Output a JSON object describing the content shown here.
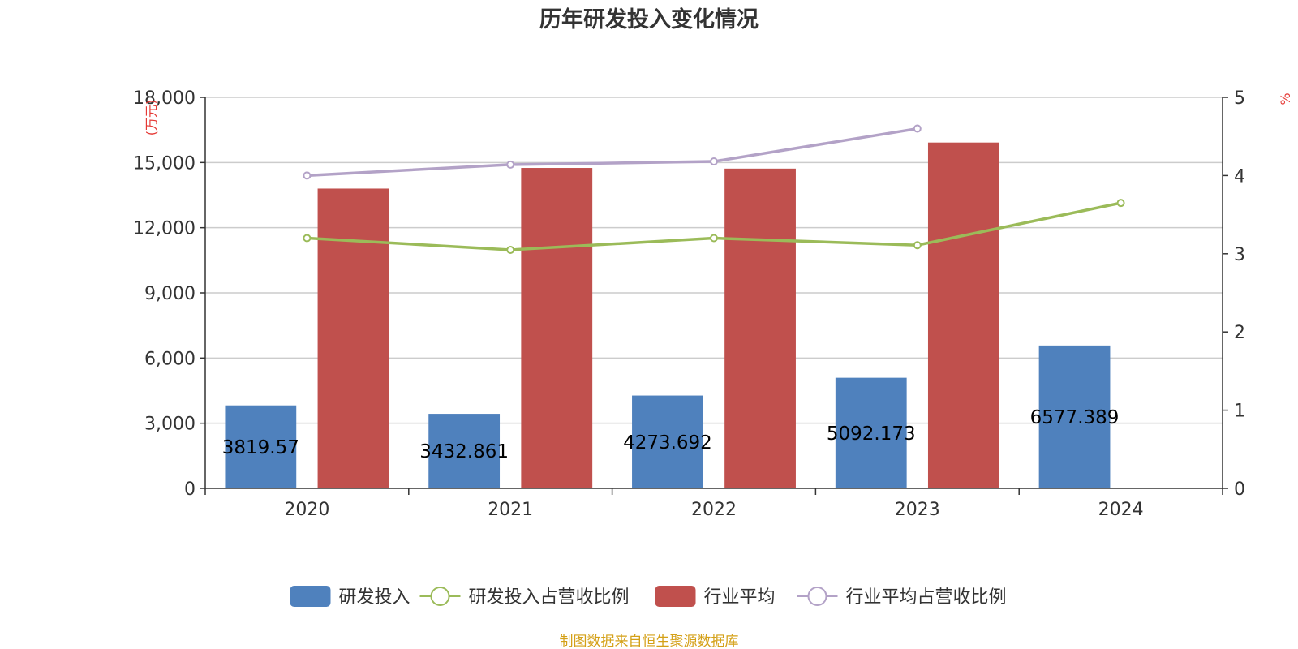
{
  "chart_data": {
    "type": "bar",
    "title": "历年研发投入变化情况",
    "categories": [
      "2020",
      "2021",
      "2022",
      "2023",
      "2024"
    ],
    "y_left": {
      "unit": "(万元)",
      "min": 0,
      "max": 18000,
      "ticks": [
        "0",
        "3,000",
        "6,000",
        "9,000",
        "12,000",
        "15,000",
        "18,000"
      ],
      "tick_values": [
        0,
        3000,
        6000,
        9000,
        12000,
        15000,
        18000
      ]
    },
    "y_right": {
      "unit": "%",
      "min": 0,
      "max": 5,
      "ticks": [
        "0",
        "1",
        "2",
        "3",
        "4",
        "5"
      ],
      "tick_values": [
        0,
        1,
        2,
        3,
        4,
        5
      ]
    },
    "series": [
      {
        "name": "研发投入",
        "kind": "bar",
        "axis": "left",
        "color": "#4f81bd",
        "values": [
          3819.57,
          3432.861,
          4273.692,
          5092.173,
          6577.389
        ],
        "labels": [
          "3819.57",
          "3432.861",
          "4273.692",
          "5092.173",
          "6577.389"
        ]
      },
      {
        "name": "行业平均",
        "kind": "bar",
        "axis": "left",
        "color": "#c0504d",
        "values": [
          13800,
          14750,
          14720,
          15920,
          null
        ]
      },
      {
        "name": "研发投入占营收比例",
        "kind": "line",
        "axis": "right",
        "color": "#9bbb59",
        "values": [
          3.2,
          3.05,
          3.2,
          3.11,
          3.65
        ]
      },
      {
        "name": "行业平均占营收比例",
        "kind": "line",
        "axis": "right",
        "color": "#b3a2c7",
        "values": [
          4.0,
          4.14,
          4.18,
          4.6,
          null
        ]
      }
    ],
    "legend": {
      "position": "bottom",
      "order": [
        "研发投入",
        "研发投入占营收比例",
        "行业平均",
        "行业平均占营收比例"
      ]
    },
    "grid": true
  },
  "source_note": "制图数据来自恒生聚源数据库"
}
